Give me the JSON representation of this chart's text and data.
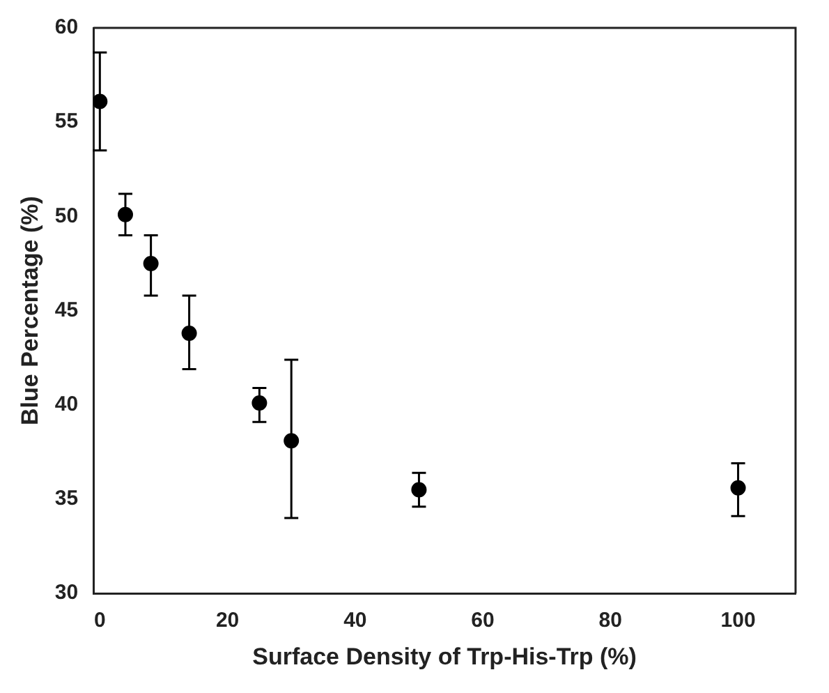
{
  "chart_data": {
    "type": "scatter",
    "xlabel": "Surface Density of Trp-His-Trp (%)",
    "ylabel": "Blue Percentage (%)",
    "x": [
      0,
      4,
      8,
      14,
      25,
      30,
      50,
      100
    ],
    "values": [
      56.1,
      50.1,
      47.5,
      43.8,
      40.1,
      38.1,
      35.5,
      35.6
    ],
    "errors": [
      [
        53.5,
        58.7
      ],
      [
        49.0,
        51.2
      ],
      [
        45.8,
        49.0
      ],
      [
        41.9,
        45.8
      ],
      [
        39.1,
        40.9
      ],
      [
        34.0,
        42.4
      ],
      [
        34.6,
        36.4
      ],
      [
        34.1,
        36.9
      ]
    ],
    "color": "#000000",
    "marker": "circle",
    "grid": false,
    "legend": false,
    "xlim": [
      -1,
      109
    ],
    "xticks": [
      0,
      20,
      40,
      60,
      80,
      100
    ],
    "ylim": [
      30,
      60
    ],
    "yticks": [
      30,
      35,
      40,
      45,
      50,
      55,
      60
    ]
  }
}
